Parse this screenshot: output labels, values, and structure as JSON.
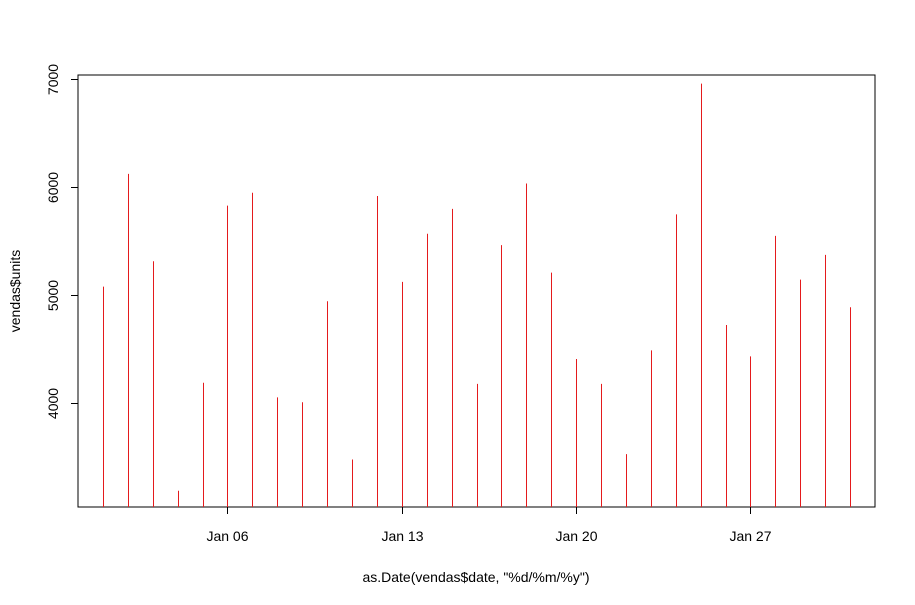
{
  "chart_data": {
    "type": "bar",
    "style": "vertical-lines",
    "title": "",
    "xlabel": "as.Date(vendas$date, \"%d/%m/%y\")",
    "ylabel": "vendas$units",
    "x_tick_labels": [
      "Jan 06",
      "Jan 13",
      "Jan 20",
      "Jan 27"
    ],
    "x_tick_dates": [
      "2015-01-06",
      "2015-01-13",
      "2015-01-20",
      "2015-01-27"
    ],
    "y_ticks": [
      4000,
      5000,
      6000,
      7000
    ],
    "y_tick_labels": [
      "4000",
      "5000",
      "6000",
      "7000"
    ],
    "xlim": [
      "2014-12-31",
      "2015-02-01"
    ],
    "ylim": [
      3040,
      7040
    ],
    "grid": false,
    "line_color": "#e41a1c",
    "dates": [
      "2015-01-01",
      "2015-01-02",
      "2015-01-03",
      "2015-01-04",
      "2015-01-05",
      "2015-01-06",
      "2015-01-07",
      "2015-01-08",
      "2015-01-09",
      "2015-01-10",
      "2015-01-11",
      "2015-01-12",
      "2015-01-13",
      "2015-01-14",
      "2015-01-15",
      "2015-01-16",
      "2015-01-17",
      "2015-01-18",
      "2015-01-19",
      "2015-01-20",
      "2015-01-21",
      "2015-01-22",
      "2015-01-23",
      "2015-01-24",
      "2015-01-25",
      "2015-01-26",
      "2015-01-27",
      "2015-01-28",
      "2015-01-29",
      "2015-01-30",
      "2015-01-31"
    ],
    "values": [
      5080,
      6125,
      5315,
      3190,
      4190,
      5830,
      5950,
      4055,
      4010,
      4945,
      3480,
      5920,
      5125,
      5570,
      5800,
      4180,
      5465,
      6035,
      5210,
      4410,
      4180,
      3530,
      4490,
      5750,
      6960,
      4725,
      4435,
      5550,
      5145,
      5375,
      4890
    ]
  }
}
